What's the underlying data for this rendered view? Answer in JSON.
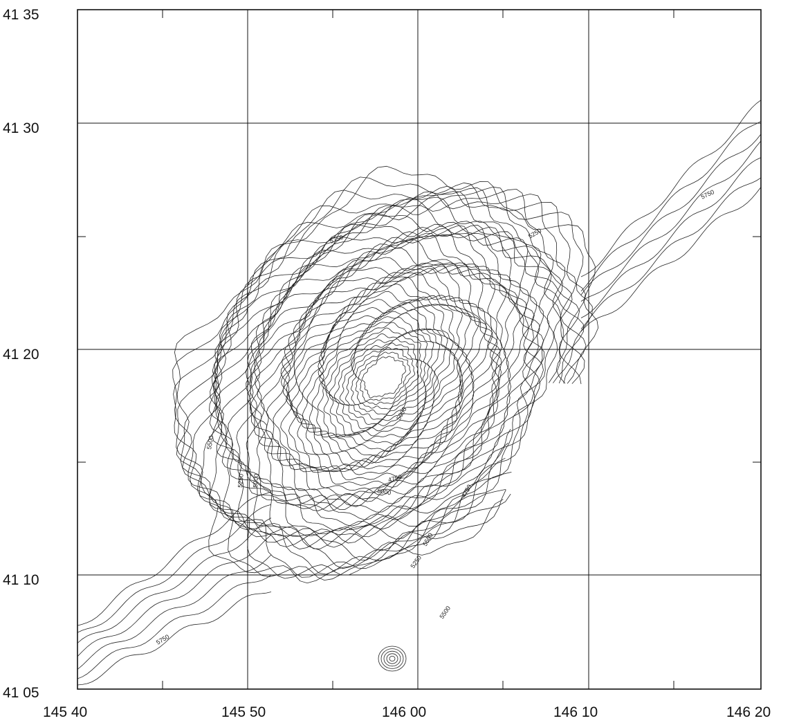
{
  "latitude_labels": [
    "41 35",
    "41 30",
    "41 20",
    "41 10",
    "41 05"
  ],
  "longitude_labels": [
    "145 40",
    "145 50",
    "146 00",
    "146 10",
    "146 20"
  ],
  "contour_labels": [
    "5750",
    "5500",
    "5250",
    "5000",
    "4750",
    "5750",
    "5500",
    "5250",
    "5000",
    "4750",
    "5500",
    "5750",
    "5250",
    "5000"
  ]
}
